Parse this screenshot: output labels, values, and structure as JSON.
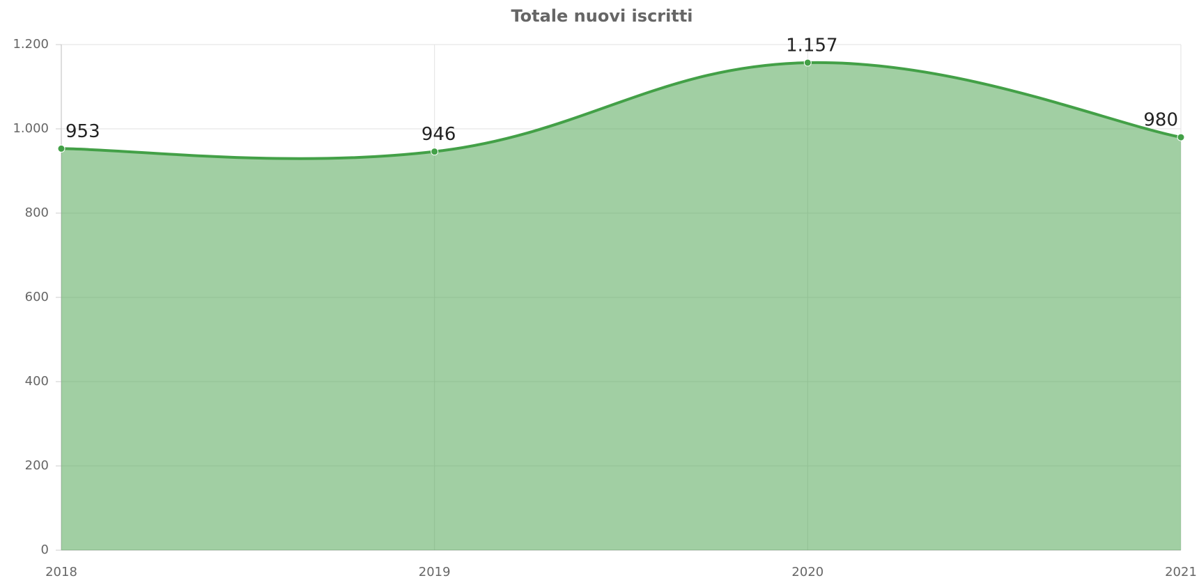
{
  "chart_data": {
    "type": "area",
    "title": "Totale nuovi iscritti",
    "categories": [
      "2018",
      "2019",
      "2020",
      "2021"
    ],
    "series": [
      {
        "name": "Totale nuovi iscritti",
        "color": "#43a047",
        "values": [
          953,
          946,
          1157,
          980
        ],
        "value_labels": [
          "953",
          "946",
          "1.157",
          "980"
        ]
      }
    ],
    "ylim": [
      0,
      1200
    ],
    "yticks": [
      0,
      200,
      400,
      600,
      800,
      {
        "value": 1000,
        "label": "1.000"
      },
      {
        "value": 1200,
        "label": "1.200"
      }
    ],
    "grid": true
  }
}
